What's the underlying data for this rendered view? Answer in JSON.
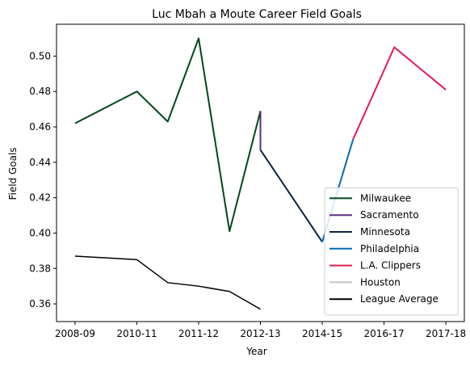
{
  "chart_data": {
    "type": "line",
    "title": "Luc Mbah a Moute Career Field Goals",
    "xlabel": "Year",
    "ylabel": "Field Goals",
    "xlim": [
      -0.45,
      9.45
    ],
    "ylim": [
      0.35,
      0.518
    ],
    "xticks": [
      {
        "x": 0,
        "label": "2008-09"
      },
      {
        "x": 1.5,
        "label": "2010-11"
      },
      {
        "x": 3,
        "label": "2011-12"
      },
      {
        "x": 4.5,
        "label": "2012-13"
      },
      {
        "x": 6,
        "label": "2014-15"
      },
      {
        "x": 7.5,
        "label": "2016-17"
      },
      {
        "x": 9,
        "label": "2017-18"
      }
    ],
    "yticks": [
      0.36,
      0.38,
      0.4,
      0.42,
      0.44,
      0.46,
      0.48,
      0.5
    ],
    "ytick_labels": [
      "0.36",
      "0.38",
      "0.40",
      "0.42",
      "0.44",
      "0.46",
      "0.48",
      "0.50"
    ],
    "grid": false,
    "legend_position": "bottom-right",
    "series": [
      {
        "name": "Milwaukee",
        "color": "#00471B",
        "width": 2,
        "points": [
          [
            0,
            0.462
          ],
          [
            1.5,
            0.48
          ],
          [
            2.25,
            0.463
          ],
          [
            3,
            0.51
          ],
          [
            3.75,
            0.401
          ],
          [
            4.5,
            0.469
          ]
        ]
      },
      {
        "name": "Sacramento",
        "color": "#5A2D81",
        "width": 2,
        "points": [
          [
            4.5,
            0.469
          ],
          [
            4.5,
            0.447
          ]
        ]
      },
      {
        "name": "Minnesota",
        "color": "#0C2340",
        "width": 2,
        "points": [
          [
            4.5,
            0.447
          ],
          [
            6,
            0.395
          ]
        ]
      },
      {
        "name": "Philadelphia",
        "color": "#006BB6",
        "width": 2,
        "points": [
          [
            6,
            0.395
          ],
          [
            6.75,
            0.453
          ]
        ]
      },
      {
        "name": "L.A. Clippers",
        "color": "#E31B55",
        "width": 2,
        "points": [
          [
            6.75,
            0.453
          ],
          [
            7.75,
            0.505
          ],
          [
            9,
            0.481
          ]
        ]
      },
      {
        "name": "Houston",
        "color": "#C4C4C4",
        "width": 2,
        "points": []
      },
      {
        "name": "League Average",
        "color": "#000000",
        "width": 1.5,
        "points": [
          [
            0,
            0.387
          ],
          [
            1.5,
            0.385
          ],
          [
            2.25,
            0.372
          ],
          [
            3,
            0.37
          ],
          [
            3.75,
            0.367
          ],
          [
            4.5,
            0.357
          ]
        ]
      }
    ]
  }
}
